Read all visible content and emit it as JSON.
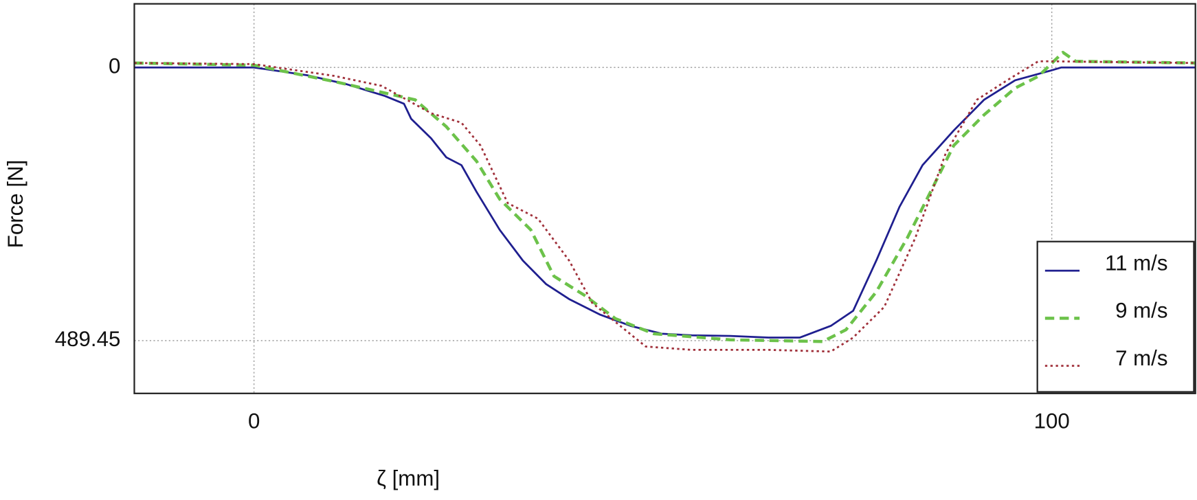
{
  "chart_data": {
    "type": "line",
    "xlabel": "ζ [mm]",
    "ylabel": "Force [N]",
    "xlim": [
      -15,
      118
    ],
    "ylim": [
      584,
      -114
    ],
    "xticks": [
      0,
      100
    ],
    "yticks": [
      0,
      489.45
    ],
    "grid": true,
    "legend": "lower right",
    "series": [
      {
        "name": "11 m/s",
        "color": "#1f1f8f",
        "dash": "solid",
        "x": [
          -15,
          0,
          6.7,
          11.6,
          16.4,
          18.8,
          19.7,
          22.2,
          24.1,
          26,
          27.9,
          30.8,
          33.7,
          36.6,
          39.5,
          43.4,
          47.2,
          51.1,
          54.9,
          59.7,
          64.5,
          68.4,
          72.3,
          75.1,
          78,
          80.9,
          83.8,
          87.7,
          91.5,
          95.4,
          100,
          101.2,
          118
        ],
        "values": [
          0,
          0,
          14,
          30,
          51,
          65,
          92,
          127,
          161,
          175,
          223,
          291,
          346,
          388,
          415,
          443,
          463,
          477,
          480,
          481,
          484,
          484,
          463,
          436,
          346,
          250,
          175,
          113,
          58,
          23,
          5,
          0,
          0
        ]
      },
      {
        "name": "9 m/s",
        "color": "#6cc24a",
        "dash": "dashed",
        "x": [
          -15,
          0,
          10,
          20.2,
          24.1,
          27.9,
          30.8,
          34.7,
          37.6,
          41.4,
          45.3,
          50.1,
          59.7,
          71.3,
          74.2,
          78,
          81.9,
          84.8,
          87.7,
          91.5,
          95.4,
          98.3,
          101.4,
          103,
          118
        ],
        "values": [
          -8,
          -4,
          25,
          58,
          106,
          168,
          236,
          291,
          374,
          408,
          450,
          477,
          488,
          491,
          470,
          402,
          305,
          223,
          140,
          85,
          37,
          16,
          -27,
          -11,
          -8
        ]
      },
      {
        "name": "7 m/s",
        "color": "#a0303a",
        "dash": "dotted",
        "x": [
          -15,
          0,
          10,
          16,
          22.2,
          26,
          28.4,
          31.8,
          35.6,
          39.5,
          42.4,
          45.3,
          49.1,
          54.9,
          64.5,
          72.3,
          75.1,
          79,
          82.9,
          86.7,
          90.6,
          94.4,
          98.3,
          100.2,
          118
        ],
        "values": [
          -8,
          -6,
          15,
          33,
          82,
          99,
          140,
          243,
          271,
          346,
          422,
          456,
          500,
          506,
          506,
          509,
          484,
          429,
          305,
          154,
          58,
          23,
          -11,
          -11,
          -8
        ]
      }
    ]
  }
}
